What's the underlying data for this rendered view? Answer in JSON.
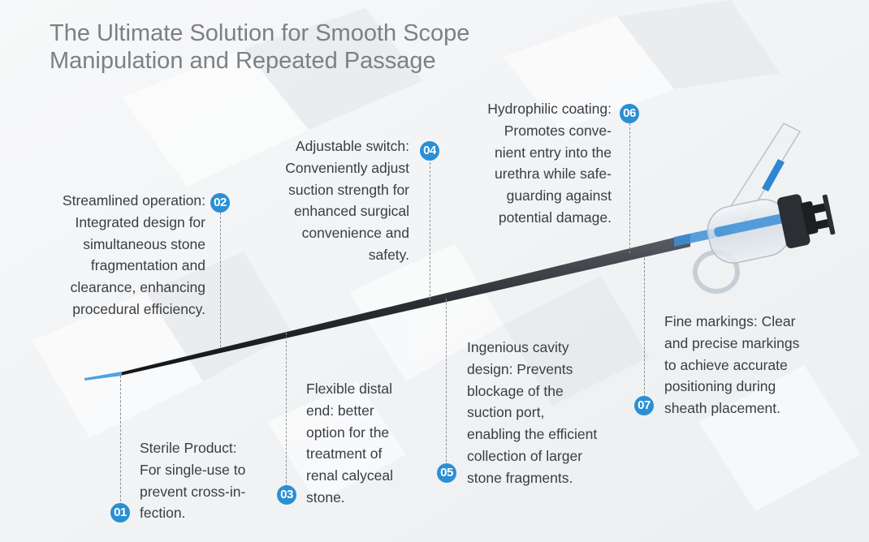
{
  "title": {
    "line1": "The Ultimate Solution for Smooth Scope",
    "line2": "Manipulation and Repeated Passage"
  },
  "features": {
    "f01": {
      "badge": "01",
      "lines": [
        "Sterile Product:",
        "For single-use to",
        "prevent cross-in-",
        "fection."
      ]
    },
    "f02": {
      "badge": "02",
      "lines": [
        "Streamlined operation:",
        "Integrated design for",
        "simultaneous stone",
        "fragmentation and",
        "clearance, enhancing",
        "procedural efficiency."
      ]
    },
    "f03": {
      "badge": "03",
      "lines": [
        "Flexible distal",
        "end: better",
        "option for the",
        "treatment of",
        "renal calyceal",
        "stone."
      ]
    },
    "f04": {
      "badge": "04",
      "lines": [
        "Adjustable switch:",
        "Conveniently adjust",
        "suction strength for",
        "enhanced surgical",
        "convenience and",
        "safety."
      ]
    },
    "f05": {
      "badge": "05",
      "lines": [
        "Ingenious cavity",
        "design: Prevents",
        "blockage of the",
        "suction port,",
        "enabling the efficient",
        "collection of larger",
        "stone fragments."
      ]
    },
    "f06": {
      "badge": "06",
      "lines": [
        "Hydrophilic coating:",
        "Promotes conve-",
        "nient entry into the",
        "urethra while safe-",
        "guarding against",
        "potential damage."
      ]
    },
    "f07": {
      "badge": "07",
      "lines": [
        "Fine markings: Clear",
        "and precise markings",
        "to achieve accurate",
        "positioning during",
        "sheath placement."
      ]
    }
  },
  "colors": {
    "accent": "#2a8fd4",
    "text": "#3a3d42",
    "title": "#7c8087",
    "sheath": "#2d3035",
    "tip": "#4aa3e8"
  }
}
